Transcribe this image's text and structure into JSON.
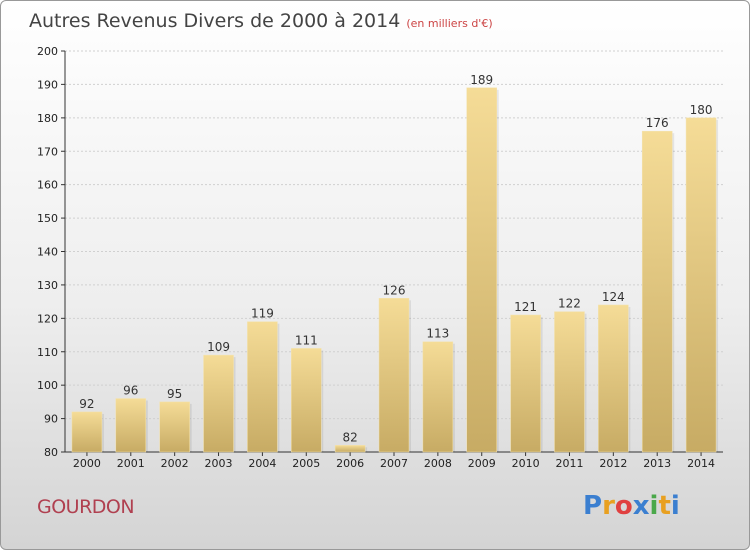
{
  "title": "Autres Revenus Divers de 2000 à 2014",
  "unit": "(en milliers d'€)",
  "city": "GOURDON",
  "logo": {
    "letters": [
      "P",
      "r",
      "o",
      "x",
      "i",
      "t",
      "i"
    ],
    "colors": [
      "#3b7fd0",
      "#e8a020",
      "#e04040",
      "#3b7fd0",
      "#4aa84a",
      "#e8a020",
      "#3b7fd0"
    ]
  },
  "chart_data": {
    "type": "bar",
    "categories": [
      "2000",
      "2001",
      "2002",
      "2003",
      "2004",
      "2005",
      "2006",
      "2007",
      "2008",
      "2009",
      "2010",
      "2011",
      "2012",
      "2013",
      "2014"
    ],
    "values": [
      92,
      96,
      95,
      109,
      119,
      111,
      82,
      126,
      113,
      189,
      121,
      122,
      124,
      176,
      180
    ],
    "ylim": [
      80,
      200
    ],
    "yticks": [
      80,
      90,
      100,
      110,
      120,
      130,
      140,
      150,
      160,
      170,
      180,
      190,
      200
    ],
    "grid": true,
    "bar_color": "#e8cf88"
  }
}
